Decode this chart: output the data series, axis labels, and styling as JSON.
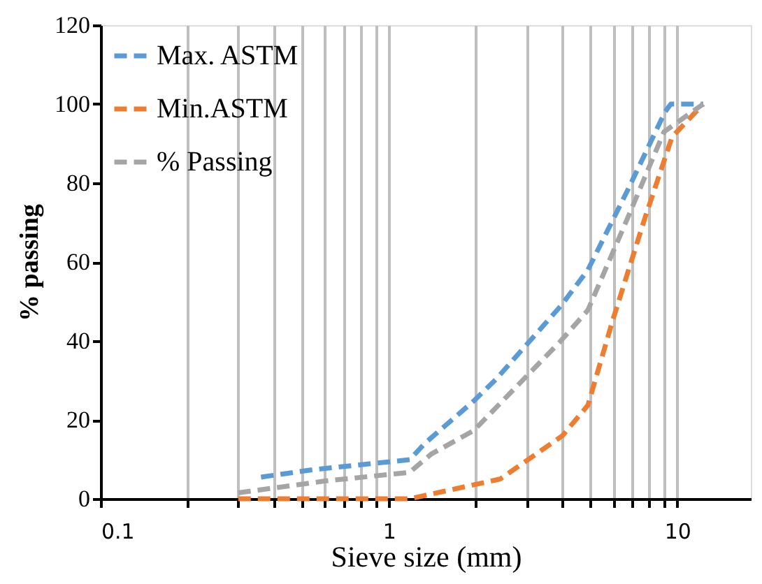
{
  "chart_data": {
    "type": "line",
    "xlabel": "Sieve size (mm)",
    "ylabel": "% passing",
    "log": "x",
    "xlim": [
      0.1,
      18
    ],
    "ylim": [
      0,
      120
    ],
    "xticks": [
      0.1,
      {
        "value": 0.2,
        "label": null
      },
      {
        "value": 0.3,
        "label": null
      },
      {
        "value": 0.4,
        "label": null
      },
      {
        "value": 0.5,
        "label": null
      },
      {
        "value": 0.6,
        "label": null
      },
      {
        "value": 0.7,
        "label": null
      },
      {
        "value": 0.8,
        "label": null
      },
      {
        "value": 0.9,
        "label": null
      },
      1,
      {
        "value": 2,
        "label": null
      },
      {
        "value": 3,
        "label": null
      },
      {
        "value": 4,
        "label": null
      },
      {
        "value": 5,
        "label": null
      },
      {
        "value": 6,
        "label": null
      },
      {
        "value": 7,
        "label": null
      },
      {
        "value": 8,
        "label": null
      },
      {
        "value": 9,
        "label": null
      },
      10
    ],
    "yticks": [
      0,
      20,
      40,
      60,
      80,
      100,
      120
    ],
    "grid": "x",
    "legend": "top left",
    "line_style": "dashed",
    "marker": "none",
    "series": [
      {
        "name": "Max. ASTM",
        "color": "#5b9bd5",
        "x": [
          0.36,
          0.55,
          1.18,
          1.33,
          1.97,
          2.36,
          3.96,
          4.9,
          6.7,
          9.07,
          9.5,
          12.3
        ],
        "values": [
          5.5,
          7.4,
          9.9,
          14,
          24.8,
          30.4,
          49,
          58,
          77.9,
          98,
          100,
          100
        ]
      },
      {
        "name": "Min.ASTM",
        "color": "#ed7d31",
        "x": [
          0.3,
          1.18,
          2.43,
          4.0,
          4.9,
          5.96,
          7.7,
          9.6,
          12.3
        ],
        "values": [
          0,
          0,
          5,
          16,
          23.7,
          45,
          70.8,
          91.7,
          100
        ]
      },
      {
        "name": "%  Passing",
        "color": "#a5a5a5",
        "x": [
          0.3,
          0.6,
          1.18,
          1.4,
          1.97,
          3.9,
          4.9,
          6.7,
          9.0,
          12.3
        ],
        "values": [
          1.5,
          4.5,
          6.7,
          11.3,
          17.3,
          39.6,
          47.8,
          70.8,
          93,
          100
        ]
      }
    ]
  }
}
